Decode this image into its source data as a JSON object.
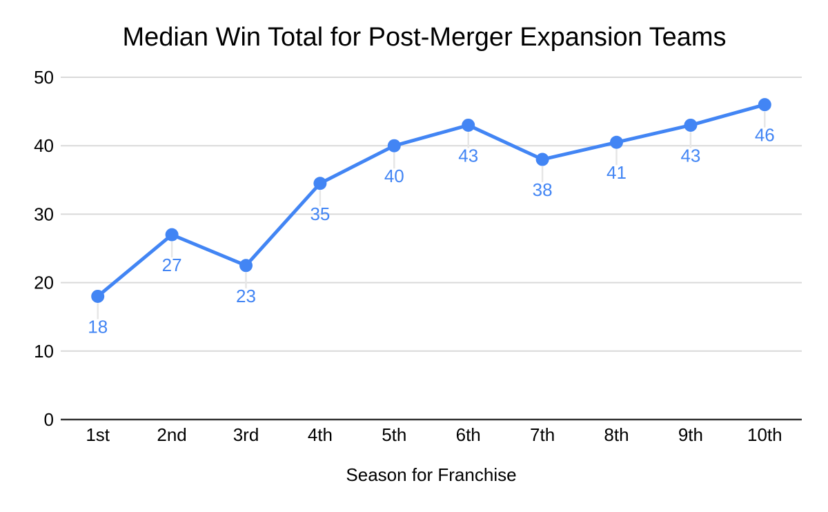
{
  "page": {
    "background": "#ffffff"
  },
  "chart_data": {
    "type": "line",
    "title": "Median Win Total for Post-Merger Expansion Teams",
    "xlabel": "Season for Franchise",
    "ylabel": "",
    "categories": [
      "1st",
      "2nd",
      "3rd",
      "4th",
      "5th",
      "6th",
      "7th",
      "8th",
      "9th",
      "10th"
    ],
    "values": [
      18,
      27,
      23,
      35,
      40,
      43,
      38,
      41,
      43,
      46
    ],
    "plotted_values": [
      18,
      27,
      22.5,
      34.5,
      40,
      43,
      38,
      40.5,
      43,
      46
    ],
    "point_labels": [
      "18",
      "27",
      "23",
      "35",
      "40",
      "43",
      "38",
      "41",
      "43",
      "46"
    ],
    "ylim": [
      0,
      50
    ],
    "yticks": [
      0,
      10,
      20,
      30,
      40,
      50
    ],
    "grid": true,
    "legend": false,
    "colors": {
      "line": "#4285f4",
      "marker": "#4285f4",
      "data_label": "#4285f4",
      "gridline": "#d9d9d9",
      "axis_line": "#333333",
      "leader_line": "#e6e6e6",
      "text": "#000000",
      "background": "#ffffff"
    }
  }
}
